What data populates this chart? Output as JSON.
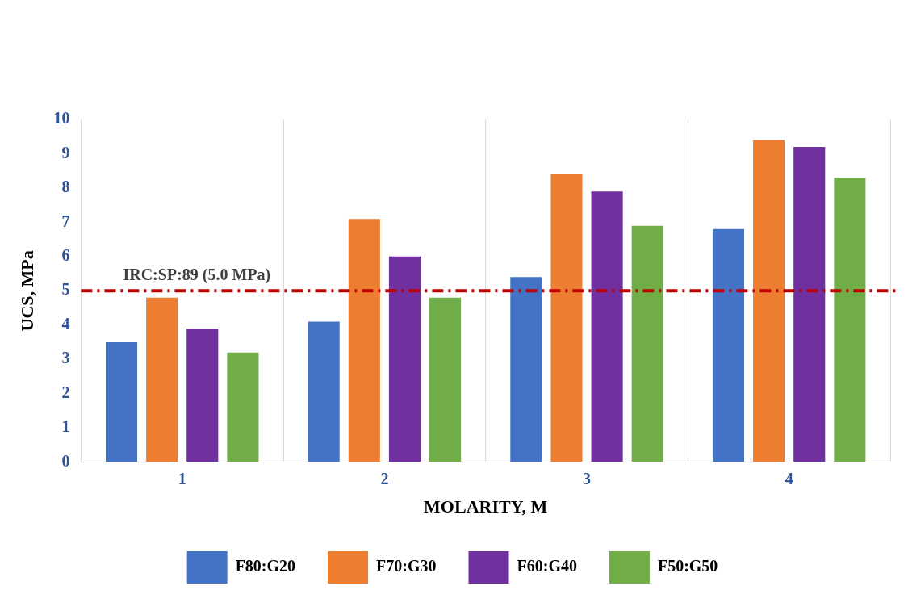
{
  "chart_data": {
    "type": "bar",
    "xlabel": "MOLARITY, M",
    "ylabel": "UCS, MPa",
    "categories": [
      "1",
      "2",
      "3",
      "4"
    ],
    "series": [
      {
        "name": "F80:G20",
        "color": "#4472c4",
        "values": [
          3.5,
          4.1,
          5.4,
          6.8
        ]
      },
      {
        "name": "F70:G30",
        "color": "#ed7d31",
        "values": [
          4.8,
          7.1,
          8.4,
          9.4
        ]
      },
      {
        "name": "F60:G40",
        "color": "#7030a0",
        "values": [
          3.9,
          6.0,
          7.9,
          9.2
        ]
      },
      {
        "name": "F50:G50",
        "color": "#70ad47",
        "values": [
          3.2,
          4.8,
          6.9,
          8.3
        ]
      }
    ],
    "ylim": [
      0,
      10
    ],
    "yticks": [
      0,
      1,
      2,
      3,
      4,
      5,
      6,
      7,
      8,
      9,
      10
    ],
    "grid": "x",
    "legend": "bottom",
    "ref_lines": [
      {
        "axis": "y",
        "value": 5,
        "label": "IRC:SP:89 (5.0 MPa)",
        "color": "#c00000",
        "line_style": "dashdot"
      }
    ]
  }
}
